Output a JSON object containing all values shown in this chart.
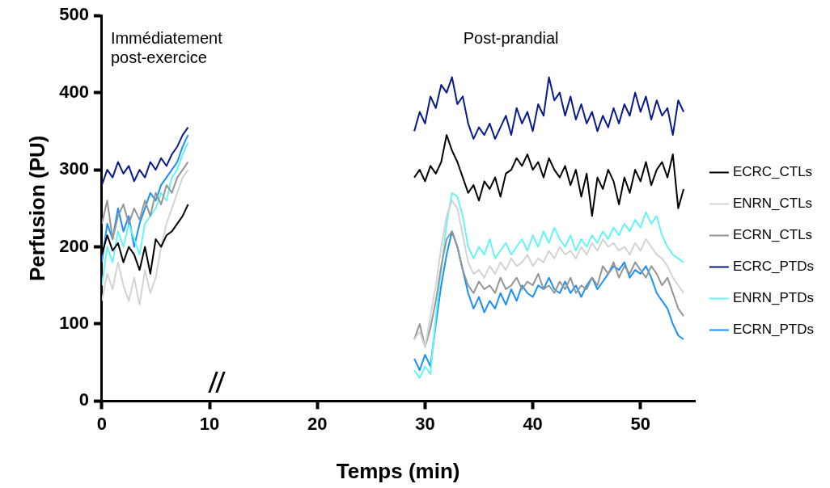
{
  "chart_data": {
    "type": "line",
    "xlabel": "Temps (min)",
    "ylabel": "Perfusion (PU)",
    "x": [
      0,
      0.5,
      1,
      1.5,
      2,
      2.5,
      3,
      3.5,
      4,
      4.5,
      5,
      5.5,
      6,
      6.5,
      7,
      7.5,
      8,
      18,
      29,
      29.5,
      30,
      30.5,
      31,
      31.5,
      32,
      32.5,
      33,
      33.5,
      34,
      34.5,
      35,
      35.5,
      36,
      36.5,
      37,
      37.5,
      38,
      38.5,
      39,
      39.5,
      40,
      40.5,
      41,
      41.5,
      42,
      42.5,
      43,
      43.5,
      44,
      44.5,
      45,
      45.5,
      46,
      46.5,
      47,
      47.5,
      48,
      48.5,
      49,
      49.5,
      50,
      50.5,
      51,
      51.5,
      52,
      52.5,
      53,
      53.5,
      54
    ],
    "xlim": [
      0,
      55
    ],
    "xticks": [
      0,
      10,
      20,
      30,
      40,
      50
    ],
    "ylim": [
      0,
      500
    ],
    "yticks": [
      0,
      100,
      200,
      300,
      400,
      500
    ],
    "grid": false,
    "legend": "right",
    "marker": "none",
    "line_style": "solid",
    "annotations": [
      "Immédiatement post-exercice",
      "Post-prandial"
    ],
    "series": [
      {
        "name": "ECRC_CTLs",
        "color": "#000000",
        "values": [
          190,
          215,
          195,
          205,
          180,
          200,
          190,
          170,
          200,
          165,
          210,
          200,
          215,
          220,
          230,
          240,
          255,
          null,
          290,
          300,
          285,
          305,
          295,
          310,
          345,
          325,
          310,
          290,
          270,
          280,
          260,
          285,
          275,
          290,
          265,
          295,
          300,
          315,
          305,
          320,
          300,
          310,
          290,
          315,
          300,
          290,
          305,
          280,
          300,
          265,
          295,
          240,
          290,
          275,
          300,
          285,
          255,
          290,
          270,
          300,
          285,
          310,
          280,
          300,
          310,
          290,
          320,
          250,
          275
        ]
      },
      {
        "name": "ENRN_CTLs",
        "color": "#d3d3d3",
        "values": [
          130,
          165,
          145,
          180,
          150,
          130,
          160,
          125,
          170,
          140,
          160,
          200,
          230,
          250,
          270,
          290,
          300,
          null,
          80,
          90,
          70,
          110,
          150,
          200,
          240,
          260,
          250,
          215,
          180,
          165,
          170,
          160,
          175,
          165,
          180,
          170,
          185,
          175,
          180,
          190,
          175,
          185,
          180,
          195,
          185,
          200,
          190,
          195,
          185,
          200,
          190,
          205,
          195,
          210,
          200,
          205,
          195,
          200,
          190,
          205,
          195,
          210,
          200,
          190,
          185,
          175,
          160,
          150,
          140
        ]
      },
      {
        "name": "ECRN_CTLs",
        "color": "#959595",
        "values": [
          230,
          260,
          210,
          240,
          255,
          230,
          250,
          235,
          260,
          240,
          270,
          255,
          280,
          270,
          290,
          300,
          310,
          null,
          80,
          100,
          70,
          95,
          130,
          175,
          210,
          220,
          200,
          170,
          150,
          140,
          155,
          145,
          150,
          140,
          160,
          145,
          150,
          160,
          145,
          155,
          150,
          165,
          145,
          150,
          140,
          155,
          145,
          160,
          140,
          150,
          145,
          160,
          150,
          175,
          165,
          180,
          160,
          175,
          165,
          180,
          170,
          160,
          175,
          165,
          150,
          160,
          140,
          120,
          110
        ]
      },
      {
        "name": "ECRC_PTDs",
        "color": "#0a1a8c",
        "values": [
          280,
          300,
          290,
          310,
          295,
          305,
          285,
          300,
          290,
          310,
          300,
          315,
          305,
          320,
          330,
          345,
          355,
          null,
          350,
          375,
          360,
          395,
          380,
          410,
          400,
          420,
          385,
          395,
          360,
          340,
          355,
          345,
          360,
          340,
          355,
          370,
          345,
          380,
          360,
          375,
          350,
          385,
          370,
          420,
          390,
          400,
          370,
          395,
          365,
          385,
          360,
          375,
          350,
          370,
          355,
          380,
          360,
          385,
          370,
          400,
          375,
          395,
          365,
          390,
          370,
          380,
          345,
          390,
          375
        ]
      },
      {
        "name": "ENRN_PTDs",
        "color": "#66f5f5",
        "values": [
          150,
          200,
          180,
          220,
          200,
          230,
          210,
          190,
          230,
          240,
          250,
          270,
          260,
          290,
          300,
          320,
          335,
          null,
          40,
          30,
          45,
          35,
          110,
          170,
          230,
          270,
          265,
          240,
          200,
          185,
          200,
          190,
          210,
          185,
          195,
          205,
          190,
          200,
          210,
          195,
          215,
          200,
          220,
          205,
          225,
          210,
          200,
          215,
          195,
          210,
          200,
          215,
          205,
          220,
          210,
          225,
          215,
          230,
          220,
          235,
          225,
          245,
          230,
          240,
          215,
          200,
          190,
          185,
          180
        ]
      },
      {
        "name": "ECRN_PTDs",
        "color": "#1a90ff",
        "values": [
          180,
          230,
          210,
          250,
          220,
          240,
          200,
          230,
          250,
          270,
          260,
          280,
          290,
          300,
          310,
          330,
          345,
          null,
          55,
          40,
          60,
          45,
          100,
          150,
          190,
          220,
          200,
          170,
          140,
          120,
          135,
          115,
          130,
          120,
          140,
          125,
          145,
          130,
          150,
          140,
          135,
          150,
          145,
          160,
          145,
          140,
          155,
          140,
          150,
          135,
          150,
          160,
          145,
          155,
          165,
          175,
          170,
          180,
          160,
          170,
          165,
          175,
          160,
          140,
          130,
          120,
          100,
          85,
          80
        ]
      }
    ]
  }
}
